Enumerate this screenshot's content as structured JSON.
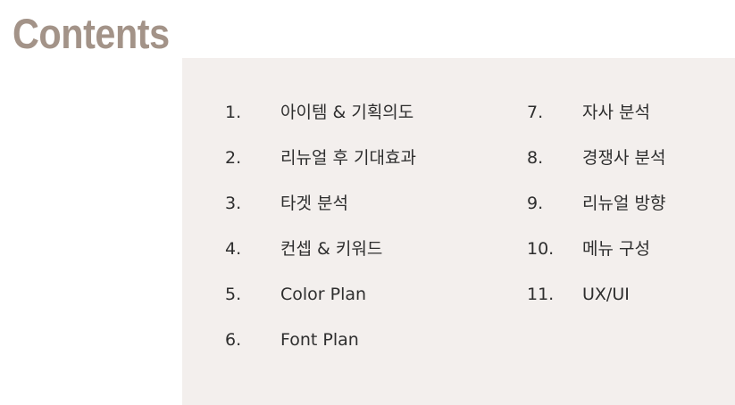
{
  "title": "Contents",
  "left_column": [
    {
      "number": "1.",
      "label": "아이템 & 기획의도"
    },
    {
      "number": "2.",
      "label": "리뉴얼 후 기대효과"
    },
    {
      "number": "3.",
      "label": "타겟 분석"
    },
    {
      "number": "4.",
      "label": "컨셉 & 키워드"
    },
    {
      "number": "5.",
      "label": "Color Plan"
    },
    {
      "number": "6.",
      "label": "Font Plan"
    }
  ],
  "right_column": [
    {
      "number": "7.",
      "label": "자사 분석"
    },
    {
      "number": "8.",
      "label": "경쟁사 분석"
    },
    {
      "number": "9.",
      "label": "리뉴얼 방향"
    },
    {
      "number": "10.",
      "label": "메뉴 구성"
    },
    {
      "number": "11.",
      "label": "UX/UI"
    }
  ],
  "colors": {
    "title": "#a39388",
    "panel_background": "#f3efed",
    "text": "#2e2e2e"
  }
}
